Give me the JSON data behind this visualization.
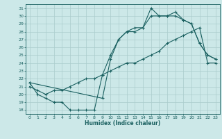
{
  "xlabel": "Humidex (Indice chaleur)",
  "xlim": [
    -0.5,
    23.5
  ],
  "ylim": [
    17.5,
    31.5
  ],
  "yticks": [
    18,
    19,
    20,
    21,
    22,
    23,
    24,
    25,
    26,
    27,
    28,
    29,
    30,
    31
  ],
  "xticks": [
    0,
    1,
    2,
    3,
    4,
    5,
    6,
    7,
    8,
    9,
    10,
    11,
    12,
    13,
    14,
    15,
    16,
    17,
    18,
    19,
    20,
    21,
    22,
    23
  ],
  "bg_color": "#cce8e8",
  "grid_color": "#aacccc",
  "line_color": "#1a6060",
  "line1_x": [
    0,
    1,
    2,
    3,
    4,
    5,
    6,
    7,
    8,
    9,
    10,
    11,
    12,
    13,
    14,
    15,
    16,
    17,
    18,
    19,
    20,
    21,
    22,
    23
  ],
  "line1_y": [
    21.5,
    20.0,
    19.5,
    19.0,
    19.0,
    18.0,
    18.0,
    18.0,
    18.0,
    22.5,
    25.0,
    27.0,
    28.0,
    28.5,
    28.5,
    31.0,
    30.0,
    30.0,
    30.5,
    29.5,
    29.0,
    26.5,
    25.0,
    24.5
  ],
  "line2_x": [
    0,
    1,
    2,
    3,
    4,
    5,
    6,
    7,
    8,
    9,
    10,
    11,
    12,
    13,
    14,
    15,
    16,
    17,
    18,
    19,
    20,
    21,
    22,
    23
  ],
  "line2_y": [
    21.0,
    20.5,
    20.0,
    20.5,
    20.5,
    21.0,
    21.5,
    22.0,
    22.0,
    22.5,
    23.0,
    23.5,
    24.0,
    24.0,
    24.5,
    25.0,
    25.5,
    26.5,
    27.0,
    27.5,
    28.0,
    28.5,
    24.0,
    24.0
  ],
  "line3_x": [
    0,
    9,
    10,
    11,
    12,
    13,
    14,
    15,
    16,
    17,
    18,
    19,
    20,
    21,
    22,
    23
  ],
  "line3_y": [
    21.5,
    19.5,
    24.5,
    27.0,
    28.0,
    28.0,
    28.5,
    30.0,
    30.0,
    30.0,
    30.0,
    29.5,
    29.0,
    26.5,
    25.0,
    24.5
  ],
  "figsize": [
    3.2,
    2.0
  ],
  "dpi": 100
}
